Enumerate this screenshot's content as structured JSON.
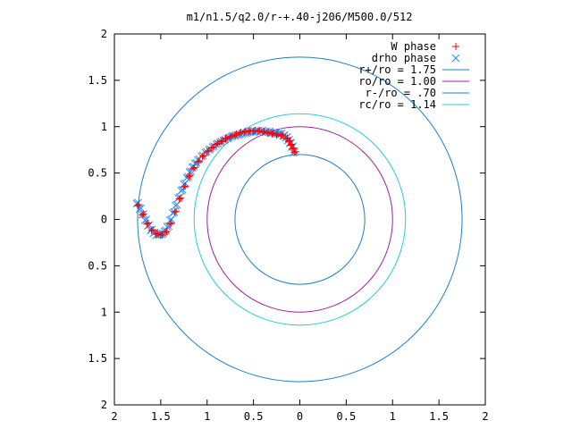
{
  "chart_data": {
    "type": "scatter",
    "title": "m1/n1.5/q2.0/r-+.40-j206/M500.0/512",
    "xlabel": "",
    "ylabel": "",
    "xlim": [
      -2,
      2
    ],
    "ylim": [
      -2,
      2
    ],
    "x_tick_labels": [
      "2",
      "1.5",
      "1",
      "0.5",
      "0",
      "0.5",
      "1",
      "1.5",
      "2"
    ],
    "y_tick_labels": [
      "2",
      "1.5",
      "1",
      "0.5",
      "0",
      "0.5",
      "1",
      "1.5",
      "2"
    ],
    "grid": false,
    "legend_position": "top-right",
    "series": [
      {
        "name": "W phase",
        "kind": "points",
        "marker": "plus",
        "color": "#ff0000",
        "x": [
          -1.75,
          -1.7,
          -1.65,
          -1.6,
          -1.55,
          -1.5,
          -1.45,
          -1.4,
          -1.35,
          -1.3,
          -1.25,
          -1.2,
          -1.15,
          -1.1,
          -1.05,
          -1.0,
          -0.95,
          -0.9,
          -0.85,
          -0.8,
          -0.75,
          -0.7,
          -0.65,
          -0.6,
          -0.55,
          -0.5,
          -0.45,
          -0.4,
          -0.35,
          -0.3,
          -0.25,
          -0.2,
          -0.15,
          -0.12,
          -0.1,
          -0.08,
          -0.06
        ],
        "y": [
          0.15,
          0.05,
          -0.05,
          -0.12,
          -0.16,
          -0.17,
          -0.14,
          -0.05,
          0.08,
          0.22,
          0.35,
          0.46,
          0.55,
          0.62,
          0.68,
          0.73,
          0.77,
          0.81,
          0.84,
          0.87,
          0.89,
          0.91,
          0.93,
          0.94,
          0.95,
          0.95,
          0.95,
          0.94,
          0.93,
          0.92,
          0.91,
          0.9,
          0.87,
          0.84,
          0.8,
          0.76,
          0.72
        ]
      },
      {
        "name": "drho phase",
        "kind": "points",
        "marker": "cross",
        "color": "#1e90ff",
        "x": [
          -1.76,
          -1.73,
          -1.7,
          -1.67,
          -1.64,
          -1.61,
          -1.58,
          -1.55,
          -1.52,
          -1.49,
          -1.46,
          -1.43,
          -1.4,
          -1.37,
          -1.34,
          -1.31,
          -1.28,
          -1.25,
          -1.22,
          -1.19,
          -1.16,
          -1.13,
          -1.1,
          -1.06,
          -1.02,
          -0.98,
          -0.94,
          -0.9,
          -0.86,
          -0.82,
          -0.78,
          -0.74,
          -0.7,
          -0.66,
          -0.62,
          -0.58,
          -0.54,
          -0.5,
          -0.46,
          -0.42,
          -0.38,
          -0.34,
          -0.3,
          -0.27,
          -0.24,
          -0.21,
          -0.18,
          -0.15,
          -0.13,
          -0.11,
          -0.09,
          -0.07
        ],
        "y": [
          0.17,
          0.11,
          0.05,
          -0.01,
          -0.07,
          -0.12,
          -0.15,
          -0.17,
          -0.17,
          -0.16,
          -0.13,
          -0.08,
          -0.01,
          0.07,
          0.15,
          0.23,
          0.31,
          0.38,
          0.45,
          0.51,
          0.56,
          0.6,
          0.64,
          0.68,
          0.72,
          0.75,
          0.78,
          0.81,
          0.83,
          0.85,
          0.87,
          0.89,
          0.9,
          0.91,
          0.92,
          0.93,
          0.94,
          0.94,
          0.95,
          0.95,
          0.94,
          0.94,
          0.93,
          0.93,
          0.92,
          0.92,
          0.9,
          0.88,
          0.85,
          0.82,
          0.78,
          0.72
        ]
      },
      {
        "name": "r+/ro = 1.75",
        "kind": "circle",
        "radius": 1.75,
        "color": "#1e7fc8"
      },
      {
        "name": "ro/ro = 1.00",
        "kind": "circle",
        "radius": 1.0,
        "color": "#a020a0"
      },
      {
        "name": "r-/ro = .70",
        "kind": "circle",
        "radius": 0.7,
        "color": "#1e7fc8"
      },
      {
        "name": "rc/ro = 1.14",
        "kind": "circle",
        "radius": 1.14,
        "color": "#20d0d0"
      }
    ]
  }
}
